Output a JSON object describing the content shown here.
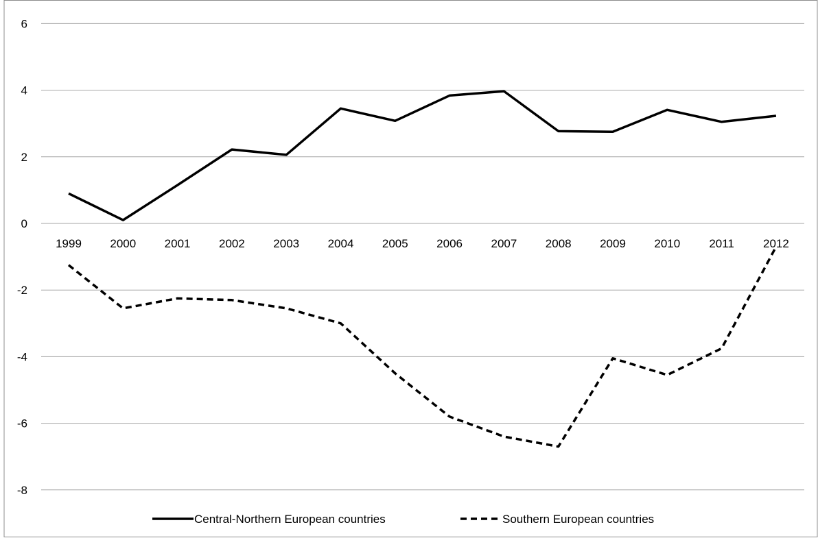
{
  "chart_data": {
    "type": "line",
    "categories": [
      "1999",
      "2000",
      "2001",
      "2002",
      "2003",
      "2004",
      "2005",
      "2006",
      "2007",
      "2008",
      "2009",
      "2010",
      "2011",
      "2012"
    ],
    "yticks": [
      "6",
      "4",
      "2",
      "0",
      "-2",
      "-4",
      "-6",
      "-8"
    ],
    "ylim": [
      -9,
      6.4
    ],
    "grid": true,
    "legend_position": "bottom",
    "series": [
      {
        "name": "Central-Northern European countries",
        "style": "solid",
        "color": "#000000",
        "values": [
          0.9,
          0.1,
          1.15,
          2.22,
          2.06,
          3.45,
          3.08,
          3.84,
          3.97,
          2.77,
          2.75,
          3.41,
          3.05,
          3.23
        ]
      },
      {
        "name": "Southern European countries",
        "style": "dashed",
        "color": "#000000",
        "values": [
          -1.25,
          -2.55,
          -2.25,
          -2.3,
          -2.55,
          -3.0,
          -4.5,
          -5.8,
          -6.4,
          -6.7,
          -4.05,
          -4.55,
          -3.75,
          -0.7
        ]
      }
    ],
    "gridline_color": "#a6a6a6",
    "frame_color": "#8c8c8c"
  }
}
